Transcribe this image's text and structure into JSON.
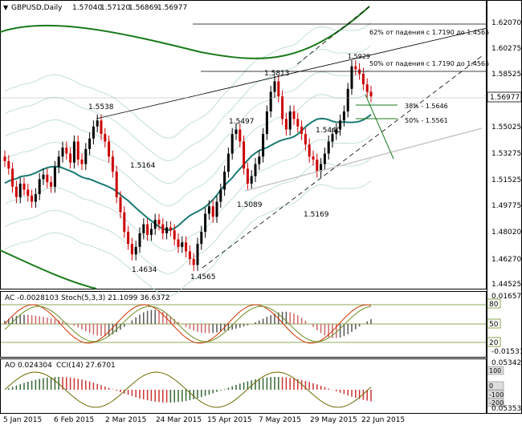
{
  "header": {
    "symbol": "GBPUSD,Daily",
    "open": "1.57040",
    "high": "1.57120",
    "low": "1.56869",
    "close": "1.56977"
  },
  "main_panel": {
    "price_scale": [
      "1.62070",
      "1.60275",
      "1.58525",
      "1.56977",
      "1.55025",
      "1.53275",
      "1.51525",
      "1.49775",
      "1.48020",
      "1.46270",
      "1.44525"
    ],
    "current_price": "1.56977",
    "annotations": [
      {
        "label": "1.5538",
        "x": "2015-02-09",
        "y": 1.5538
      },
      {
        "label": "1.5164",
        "x": "2015-02-23",
        "y": 1.5164
      },
      {
        "label": "1.4634",
        "x": "2015-03-13",
        "y": 1.4634
      },
      {
        "label": "1.4565",
        "x": "2015-04-13",
        "y": 1.4565
      },
      {
        "label": "1.5497",
        "x": "2015-04-28",
        "y": 1.5497
      },
      {
        "label": "1.5089",
        "x": "2015-05-05",
        "y": 1.5089
      },
      {
        "label": "1.5813",
        "x": "2015-05-13",
        "y": 1.5813
      },
      {
        "label": "1.5440",
        "x": "2015-05-29",
        "y": 1.544
      },
      {
        "label": "1.5169",
        "x": "2015-06-02",
        "y": 1.5169
      },
      {
        "label": "1.5929",
        "x": "2015-06-18",
        "y": 1.5929
      }
    ],
    "fib_labels": [
      {
        "text": "62% от падения с 1.7190 до 1.4565",
        "y": 1.6207
      },
      {
        "text": "50% от падения с 1.7190 до 1.4565",
        "y": 1.5877
      },
      {
        "text": "38% - 1.5646",
        "y": 1.5646
      },
      {
        "text": "50% - 1.5561",
        "y": 1.5561
      }
    ]
  },
  "ac_panel": {
    "title": "AC -0.0028103",
    "stoch_title": "Stoch(5,3,3) 21.1099 36.6372",
    "scale": [
      "0.016575",
      "80",
      "50",
      "20",
      "-0.01531"
    ]
  },
  "ao_panel": {
    "title": "AO 0.024304",
    "cci_title": "CCI(14) 27.6701",
    "scale": [
      "0.053422",
      "100",
      "0",
      "-100",
      "-200",
      "0.053539"
    ]
  },
  "time_axis": [
    "5 Jan 2015",
    "6 Feb 2015",
    "2 Mar 2015",
    "24 Mar 2015",
    "15 Apr 2015",
    "7 May 2015",
    "29 May 2015",
    "22 Jun 2015"
  ],
  "colors": {
    "bull": "#000000",
    "bear": "#cc0000",
    "ma_green": "#1a7a1a",
    "ma_teal": "#1a7a73",
    "envelope": "#b5d6d6",
    "level_line": "#1a7a1a"
  },
  "chart_data": {
    "type": "candlestick",
    "series": [
      {
        "name": "GBPUSD,Daily",
        "closes": [
          1.527,
          1.522,
          1.51,
          1.503,
          1.512,
          1.508,
          1.504,
          1.5,
          1.505,
          1.515,
          1.518,
          1.513,
          1.51,
          1.523,
          1.53,
          1.536,
          1.532,
          1.526,
          1.54,
          1.528,
          1.525,
          1.535,
          1.542,
          1.55,
          1.554,
          1.545,
          1.54,
          1.53,
          1.52,
          1.503,
          1.493,
          1.48,
          1.472,
          1.465,
          1.47,
          1.479,
          1.485,
          1.478,
          1.482,
          1.488,
          1.485,
          1.479,
          1.483,
          1.481,
          1.475,
          1.47,
          1.473,
          1.467,
          1.462,
          1.458,
          1.472,
          1.48,
          1.492,
          1.497,
          1.49,
          1.5,
          1.508,
          1.52,
          1.532,
          1.545,
          1.548,
          1.54,
          1.522,
          1.512,
          1.517,
          1.525,
          1.53,
          1.545,
          1.56,
          1.573,
          1.58,
          1.57,
          1.555,
          1.548,
          1.56,
          1.555,
          1.55,
          1.545,
          1.538,
          1.53,
          1.528,
          1.52,
          1.525,
          1.532,
          1.54,
          1.545,
          1.548,
          1.554,
          1.56,
          1.575,
          1.59,
          1.588,
          1.585,
          1.578,
          1.573,
          1.57
        ]
      }
    ]
  }
}
